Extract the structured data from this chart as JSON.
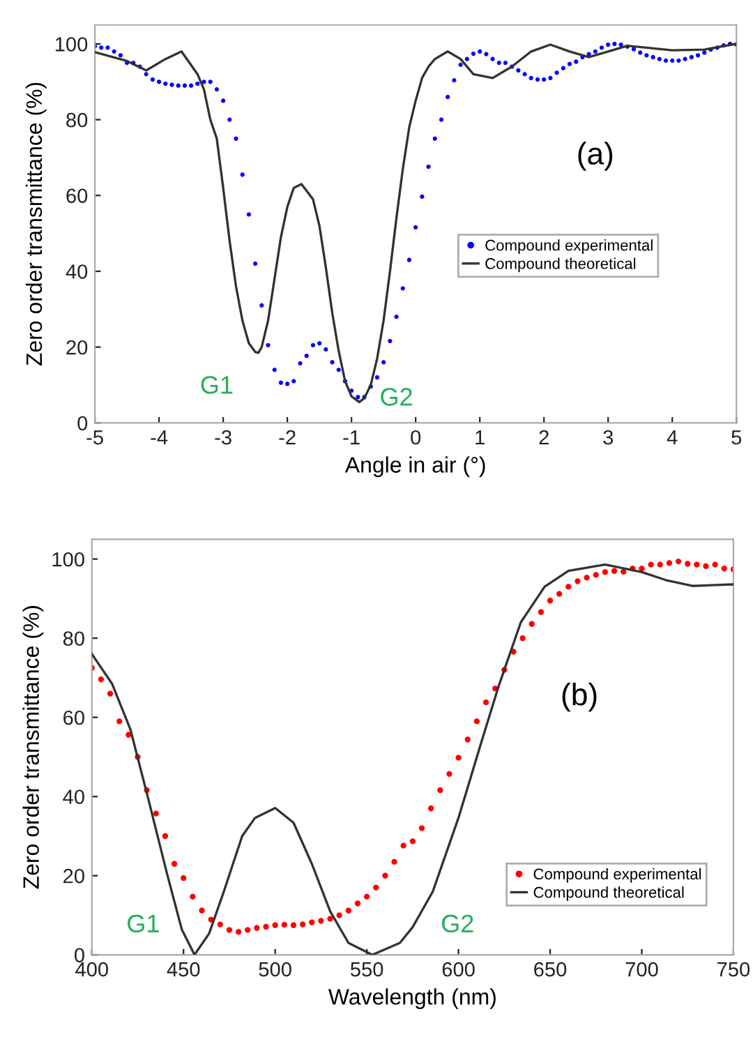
{
  "chart_data": [
    {
      "type": "line",
      "xlabel": "Angle in air (°)",
      "ylabel": "Zero order transmittance (%)",
      "xlim": [
        -5,
        5
      ],
      "ylim": [
        0,
        105
      ],
      "xticks": [
        -5,
        -4,
        -3,
        -2,
        -1,
        0,
        1,
        2,
        3,
        4,
        5
      ],
      "yticks": [
        0,
        20,
        40,
        60,
        80,
        100
      ],
      "grid": false,
      "legend": "right",
      "annotations": [
        "(a)",
        "G1",
        "G2"
      ],
      "series": [
        {
          "name": "Compound experimental",
          "type": "scatter",
          "marker": "circle",
          "color": "#0000ff",
          "x": [
            -5.0,
            -4.9,
            -4.8,
            -4.7,
            -4.6,
            -4.5,
            -4.4,
            -4.3,
            -4.2,
            -4.1,
            -4.0,
            -3.9,
            -3.8,
            -3.7,
            -3.6,
            -3.5,
            -3.4,
            -3.3,
            -3.2,
            -3.1,
            -3.0,
            -2.9,
            -2.8,
            -2.7,
            -2.6,
            -2.5,
            -2.4,
            -2.3,
            -2.2,
            -2.1,
            -2.0,
            -1.9,
            -1.8,
            -1.7,
            -1.6,
            -1.5,
            -1.4,
            -1.3,
            -1.2,
            -1.1,
            -1.0,
            -0.9,
            -0.8,
            -0.7,
            -0.6,
            -0.5,
            -0.4,
            -0.3,
            -0.2,
            -0.1,
            0.0,
            0.1,
            0.2,
            0.3,
            0.4,
            0.5,
            0.6,
            0.7,
            0.8,
            0.9,
            1.0,
            1.1,
            1.2,
            1.3,
            1.4,
            1.5,
            1.6,
            1.7,
            1.8,
            1.9,
            2.0,
            2.1,
            2.2,
            2.3,
            2.4,
            2.5,
            2.6,
            2.7,
            2.8,
            2.9,
            3.0,
            3.1,
            3.2,
            3.3,
            3.4,
            3.5,
            3.6,
            3.7,
            3.8,
            3.9,
            4.0,
            4.1,
            4.2,
            4.3,
            4.4,
            4.5,
            4.6,
            4.7,
            4.8,
            4.9,
            5.0
          ],
          "values": [
            99.4,
            99,
            99,
            98,
            97,
            95,
            95,
            94,
            92,
            90.6,
            90,
            89.5,
            89.2,
            89,
            89,
            89,
            89.5,
            90,
            90,
            88,
            85,
            80,
            75,
            65.5,
            55,
            42,
            31,
            20.5,
            14,
            10.6,
            10.3,
            11,
            15.7,
            17.7,
            20.5,
            21,
            19.4,
            16,
            14,
            11,
            8.5,
            6.8,
            6.8,
            9.6,
            12,
            16,
            21.6,
            28,
            35.5,
            43,
            51.6,
            59.7,
            67.6,
            75,
            80,
            86,
            90.4,
            94.5,
            96,
            97.4,
            98,
            97.3,
            96,
            95,
            95,
            94,
            93,
            92,
            91,
            90.6,
            90.6,
            91,
            92.4,
            93.6,
            94.7,
            95.3,
            96.5,
            97.3,
            98,
            99,
            99.8,
            100,
            99.8,
            99.3,
            98.6,
            97.7,
            97,
            96.5,
            96,
            95.6,
            95.6,
            95.6,
            96,
            96.5,
            97,
            97.7,
            98.5,
            99,
            99.6,
            100,
            99.8
          ]
        },
        {
          "name": "Compound theoretical",
          "line_style": "solid",
          "color": "#333333",
          "x": [
            -5.0,
            -4.5,
            -4.2,
            -3.9,
            -3.65,
            -3.4,
            -3.3,
            -3.2,
            -3.1,
            -3.0,
            -2.9,
            -2.8,
            -2.7,
            -2.6,
            -2.5,
            -2.45,
            -2.4,
            -2.3,
            -2.2,
            -2.1,
            -2.0,
            -1.9,
            -1.78,
            -1.6,
            -1.5,
            -1.4,
            -1.3,
            -1.2,
            -1.1,
            -1.0,
            -0.88,
            -0.8,
            -0.7,
            -0.6,
            -0.5,
            -0.4,
            -0.3,
            -0.2,
            -0.1,
            0.0,
            0.1,
            0.2,
            0.3,
            0.5,
            0.7,
            0.9,
            1.2,
            1.5,
            1.8,
            2.1,
            2.4,
            2.7,
            3.0,
            3.3,
            3.6,
            4.0,
            4.5,
            5.0
          ],
          "values": [
            97.8,
            95.5,
            93,
            96,
            98,
            92,
            88,
            80,
            75,
            62,
            48,
            36,
            27,
            21,
            18.7,
            18.5,
            20,
            27,
            38,
            49,
            57,
            62,
            63,
            59,
            52,
            41,
            29,
            19,
            11,
            7,
            5.5,
            6.5,
            10,
            17,
            27,
            40,
            54,
            67,
            78,
            85,
            91,
            94,
            96,
            98,
            96,
            92,
            91,
            94,
            98,
            99.8,
            98,
            96.5,
            98,
            99.5,
            99,
            98.3,
            98.5,
            100
          ]
        }
      ]
    },
    {
      "type": "line",
      "xlabel": "Wavelength (nm)",
      "ylabel": "Zero order transmittance (%)",
      "xlim": [
        400,
        750
      ],
      "ylim": [
        0,
        105
      ],
      "xticks": [
        400,
        450,
        500,
        550,
        600,
        650,
        700,
        750
      ],
      "yticks": [
        0,
        20,
        40,
        60,
        80,
        100
      ],
      "grid": false,
      "legend": "bottom right",
      "annotations": [
        "(b)",
        "G1",
        "G2"
      ],
      "series": [
        {
          "name": "Compound experimental",
          "type": "scatter",
          "marker": "circle",
          "color": "#ff0000",
          "x": [
            400,
            405,
            410,
            415,
            420,
            425,
            430,
            435,
            440,
            445,
            450,
            455,
            460,
            465,
            470,
            475,
            480,
            485,
            490,
            495,
            500,
            505,
            510,
            515,
            520,
            525,
            530,
            535,
            540,
            545,
            550,
            555,
            560,
            565,
            570,
            575,
            580,
            585,
            590,
            595,
            600,
            605,
            610,
            615,
            620,
            625,
            630,
            635,
            640,
            645,
            650,
            655,
            660,
            665,
            670,
            675,
            680,
            685,
            690,
            695,
            700,
            705,
            710,
            715,
            720,
            725,
            730,
            735,
            740,
            745,
            750
          ],
          "values": [
            72.5,
            69.6,
            66,
            59,
            55.6,
            50,
            41.6,
            35.7,
            30,
            23,
            19.4,
            14.7,
            11.2,
            8.9,
            7.7,
            6.3,
            5.8,
            6.3,
            6.8,
            7.1,
            7.5,
            7.6,
            7.5,
            7.7,
            8.2,
            8.6,
            9.1,
            10,
            11.2,
            13,
            14.7,
            17,
            20,
            23.5,
            27.6,
            28.7,
            32,
            37,
            41.6,
            45.7,
            49.8,
            54.4,
            59,
            63.8,
            67.3,
            72,
            76.6,
            80,
            83.6,
            86.6,
            89.5,
            91.2,
            93,
            94.4,
            95.3,
            96,
            96.7,
            97,
            96.8,
            97.6,
            97.6,
            98.6,
            98.6,
            99,
            99.4,
            98.8,
            98.6,
            98.2,
            98.6,
            97.6,
            97.4
          ]
        },
        {
          "name": "Compound theoretical",
          "line_style": "solid",
          "color": "#333333",
          "x": [
            400,
            411,
            421,
            431,
            441,
            449,
            456,
            464,
            472,
            482,
            489,
            500,
            510,
            520,
            530,
            540,
            553,
            568,
            575,
            586,
            600,
            612,
            622,
            634,
            647,
            660,
            680,
            700,
            713,
            728,
            750
          ],
          "values": [
            76,
            68.5,
            57,
            39,
            20.5,
            6.5,
            0,
            5.4,
            16,
            30,
            34.6,
            37.1,
            33.4,
            23,
            11,
            3,
            0,
            3,
            7,
            16,
            34.6,
            53,
            68,
            84,
            93,
            97,
            98.6,
            96.7,
            94.7,
            93.2,
            93.6
          ]
        }
      ]
    }
  ]
}
